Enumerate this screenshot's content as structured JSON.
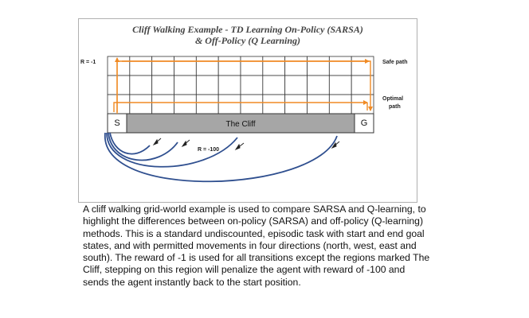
{
  "figure": {
    "title_line1": "Cliff Walking Example -  TD Learning On-Policy (SARSA)",
    "title_line2": "& Off-Policy (Q Learning)",
    "reward_step": "R = -1",
    "reward_cliff": "R = -100",
    "start_label": "S",
    "goal_label": "G",
    "cliff_label": "The  Cliff",
    "safe_path_label": "Safe path",
    "optimal_path_label_1": "Optimal",
    "optimal_path_label_2": "path",
    "colors": {
      "path_arrow": "#f08a24",
      "cliff_fill": "#a6a6a6",
      "grid_line": "#333333",
      "return_curve": "#2f4f8f",
      "frame": "#b0b0b0"
    },
    "grid": {
      "rows": 4,
      "cols": 12
    }
  },
  "caption": "A cliff walking grid-world example is used to compare SARSA and Q-learning, to highlight the differences between on-policy (SARSA) and off-policy (Q-learning) methods. This is a standard undiscounted, episodic task with start and end goal states, and with permitted movements in four directions (north, west, east and south). The reward of -1 is used for all transitions except the regions marked The Cliff, stepping on this region will penalize the agent with reward of -100 and sends the agent instantly back to the start position."
}
